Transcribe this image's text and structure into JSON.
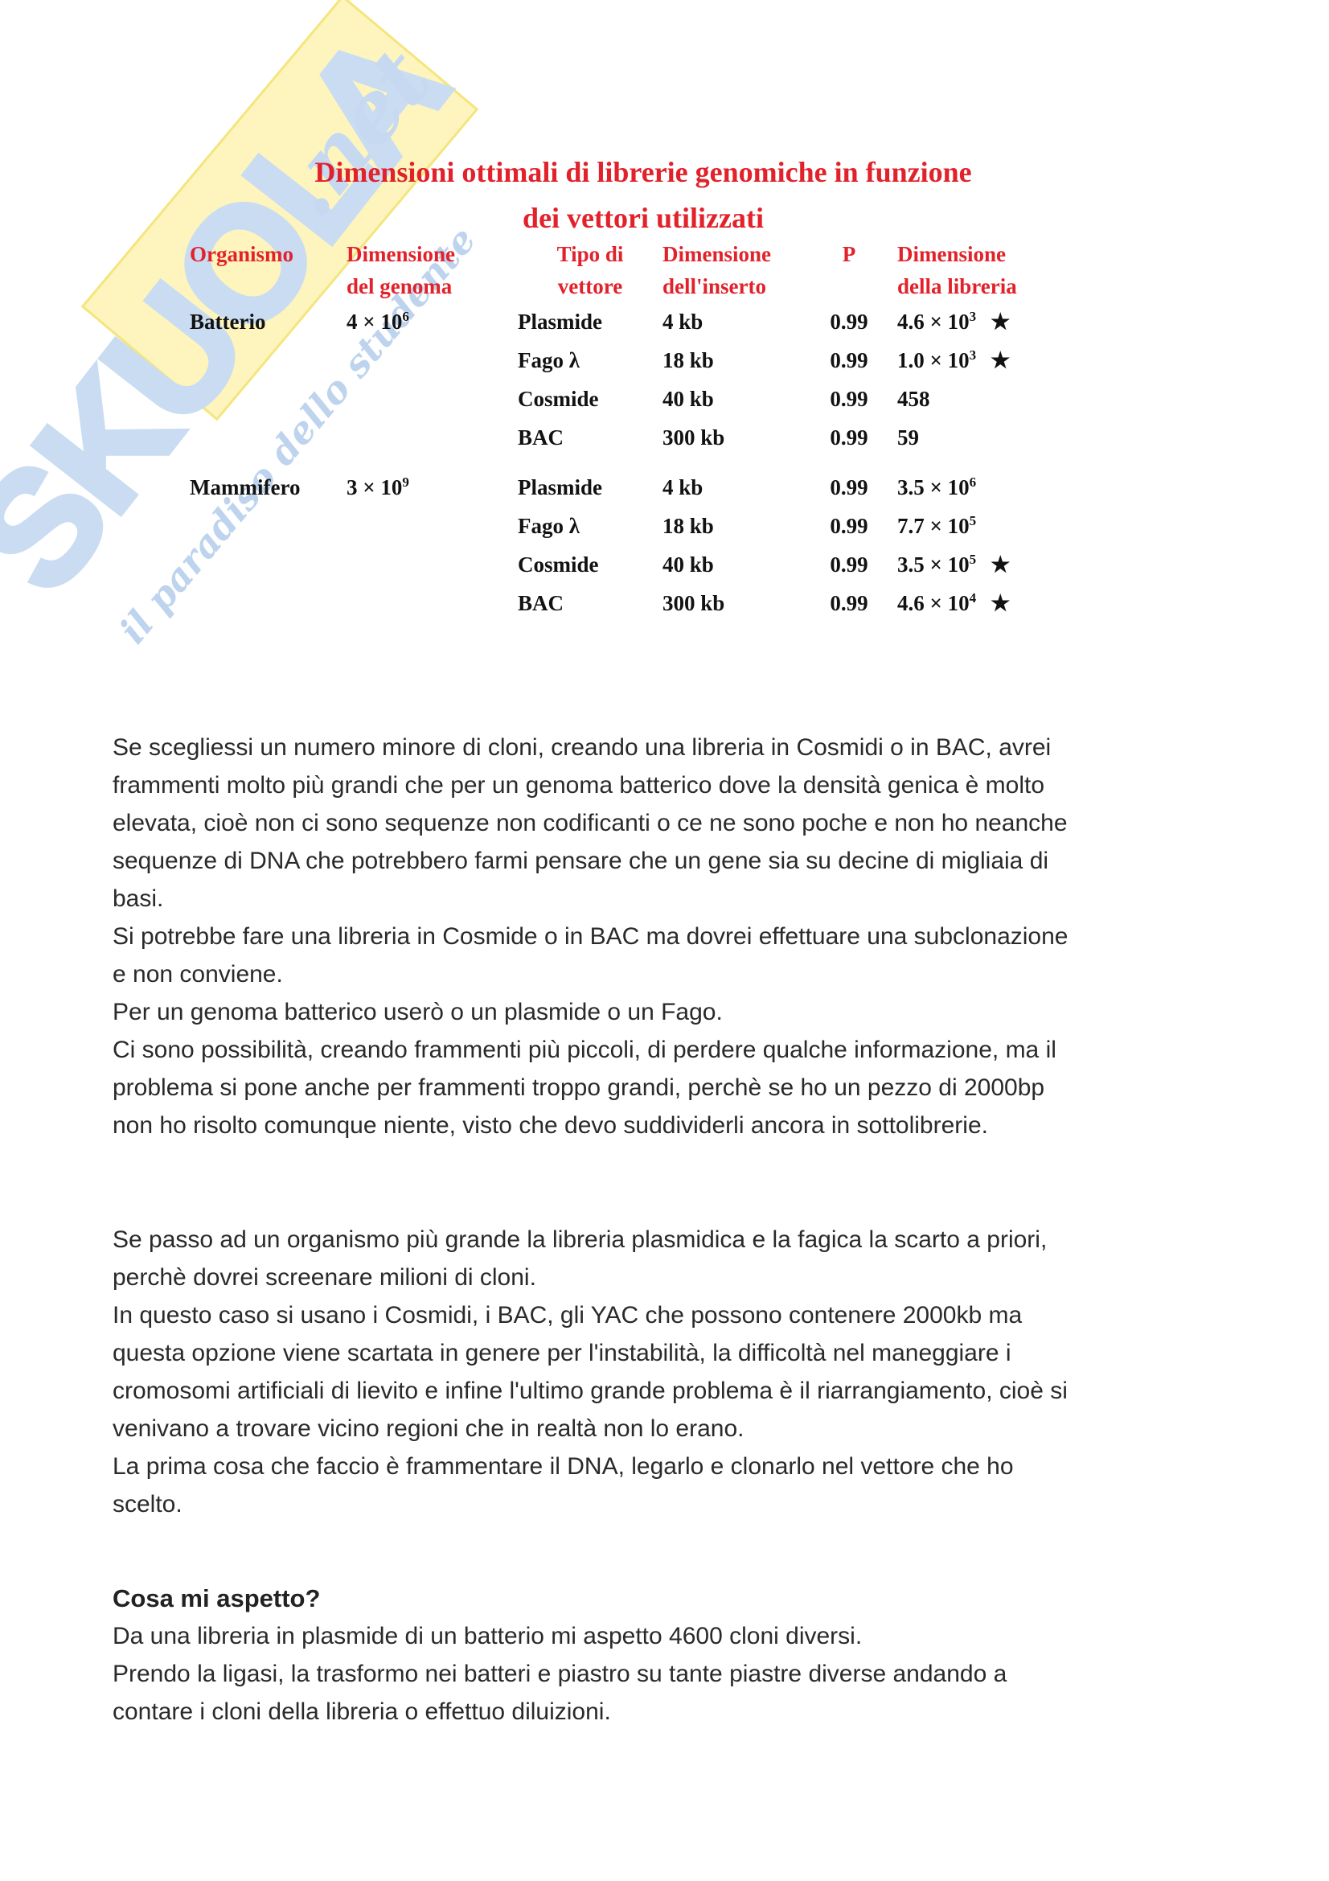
{
  "watermark": {
    "brand": "SKUOLA",
    "brand_suffix": ".net",
    "tagline": "il paradiso dello studente",
    "brand_color": "#c9dcf2",
    "band_color": "#fdf5bd"
  },
  "table": {
    "title_line1": "Dimensioni ottimali di librerie genomiche in funzione",
    "title_line2": "dei vettori utilizzati",
    "title_color": "#e2222b",
    "headers": {
      "organism": "Organismo",
      "genome_l1": "Dimensione",
      "genome_l2": "del genoma",
      "vector_l1": "Tipo di",
      "vector_l2": "vettore",
      "insert_l1": "Dimensione",
      "insert_l2": "dell'inserto",
      "p": "P",
      "library_l1": "Dimensione",
      "library_l2": "della libreria"
    },
    "rows": [
      {
        "organism": "Batterio",
        "genome_base": "4 × 10",
        "genome_exp": "6",
        "vector": "Plasmide",
        "insert": "4 kb",
        "p": "0.99",
        "library_base": "4.6 × 10",
        "library_exp": "3",
        "star": "★"
      },
      {
        "vector": "Fago λ",
        "insert": "18 kb",
        "p": "0.99",
        "library_base": "1.0 × 10",
        "library_exp": "3",
        "star": "★"
      },
      {
        "vector": "Cosmide",
        "insert": "40 kb",
        "p": "0.99",
        "library_base": "458",
        "library_exp": "",
        "star": ""
      },
      {
        "vector": "BAC",
        "insert": "300 kb",
        "p": "0.99",
        "library_base": "59",
        "library_exp": "",
        "star": ""
      },
      {
        "organism": "Mammifero",
        "genome_base": "3 × 10",
        "genome_exp": "9",
        "vector": "Plasmide",
        "insert": "4 kb",
        "p": "0.99",
        "library_base": "3.5 × 10",
        "library_exp": "6",
        "star": ""
      },
      {
        "vector": "Fago λ",
        "insert": "18 kb",
        "p": "0.99",
        "library_base": "7.7 × 10",
        "library_exp": "5",
        "star": ""
      },
      {
        "vector": "Cosmide",
        "insert": "40 kb",
        "p": "0.99",
        "library_base": "3.5 × 10",
        "library_exp": "5",
        "star": "★"
      },
      {
        "vector": "BAC",
        "insert": "300 kb",
        "p": "0.99",
        "library_base": "4.6 × 10",
        "library_exp": "4",
        "star": "★"
      }
    ]
  },
  "body": {
    "block1": [
      "Se scegliessi un numero minore di cloni, creando una libreria in Cosmidi o in BAC, avrei",
      "frammenti molto più grandi che per un genoma batterico dove la densità genica è molto",
      "elevata, cioè non ci sono sequenze non codificanti o ce ne sono poche e non ho neanche",
      "sequenze di DNA che potrebbero farmi pensare che un gene sia su decine di migliaia di",
      "basi.",
      "Si potrebbe fare una libreria in Cosmide o in BAC ma dovrei effettuare una subclonazione",
      "e non conviene.",
      "Per un genoma batterico userò o un plasmide o un Fago.",
      "Ci sono possibilità, creando frammenti più piccoli, di perdere qualche informazione, ma il",
      "problema si pone anche per frammenti troppo grandi, perchè se ho un pezzo di 2000bp",
      "non ho risolto comunque niente, visto che devo suddividerli ancora in sottolibrerie."
    ],
    "block2": [
      "Se passo ad un organismo più grande la libreria plasmidica e la fagica la scarto a priori,",
      "perchè dovrei screenare milioni di cloni.",
      "In questo caso si usano i Cosmidi, i BAC, gli YAC che possono contenere 2000kb ma",
      "questa opzione viene scartata in genere per l'instabilità, la difficoltà nel maneggiare i",
      "cromosomi artificiali di lievito e infine l'ultimo grande problema è il riarrangiamento, cioè si",
      "venivano a trovare vicino regioni che in realtà non lo erano.",
      "La prima cosa che faccio è frammentare il DNA, legarlo e clonarlo nel vettore che ho",
      "scelto."
    ],
    "heading": "Cosa mi aspetto?",
    "block3": [
      "Da una libreria in plasmide di un batterio mi aspetto 4600 cloni diversi.",
      "Prendo la ligasi, la trasformo nei batteri e piastro su tante piastre diverse andando a",
      "contare i cloni della libreria o effettuo diluizioni."
    ]
  }
}
